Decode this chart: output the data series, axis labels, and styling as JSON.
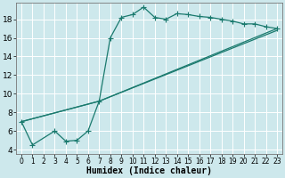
{
  "xlabel": "Humidex (Indice chaleur)",
  "bg_color": "#cde8ec",
  "line_color": "#1a7a6e",
  "grid_color": "#b8d8dc",
  "xlim": [
    -0.5,
    23.5
  ],
  "ylim": [
    3.5,
    19.8
  ],
  "yticks": [
    4,
    6,
    8,
    10,
    12,
    14,
    16,
    18
  ],
  "xticks": [
    0,
    1,
    2,
    3,
    4,
    5,
    6,
    7,
    8,
    9,
    10,
    11,
    12,
    13,
    14,
    15,
    16,
    17,
    18,
    19,
    20,
    21,
    22,
    23
  ],
  "curve1_x": [
    0,
    1,
    3,
    4,
    5,
    6,
    7,
    8,
    9,
    10,
    11,
    12,
    13,
    14,
    15,
    16,
    17,
    18,
    19,
    20,
    21,
    22,
    23
  ],
  "curve1_y": [
    7.0,
    4.5,
    6.0,
    4.9,
    5.0,
    6.0,
    9.2,
    16.0,
    18.2,
    18.5,
    19.3,
    18.2,
    18.0,
    18.6,
    18.5,
    18.3,
    18.2,
    18.0,
    17.8,
    17.5,
    17.5,
    17.2,
    17.0
  ],
  "curve2_x": [
    0,
    7,
    23
  ],
  "curve2_y": [
    7.0,
    9.2,
    17.0
  ],
  "curve3_x": [
    0,
    7,
    23
  ],
  "curve3_y": [
    7.0,
    9.2,
    16.8
  ]
}
